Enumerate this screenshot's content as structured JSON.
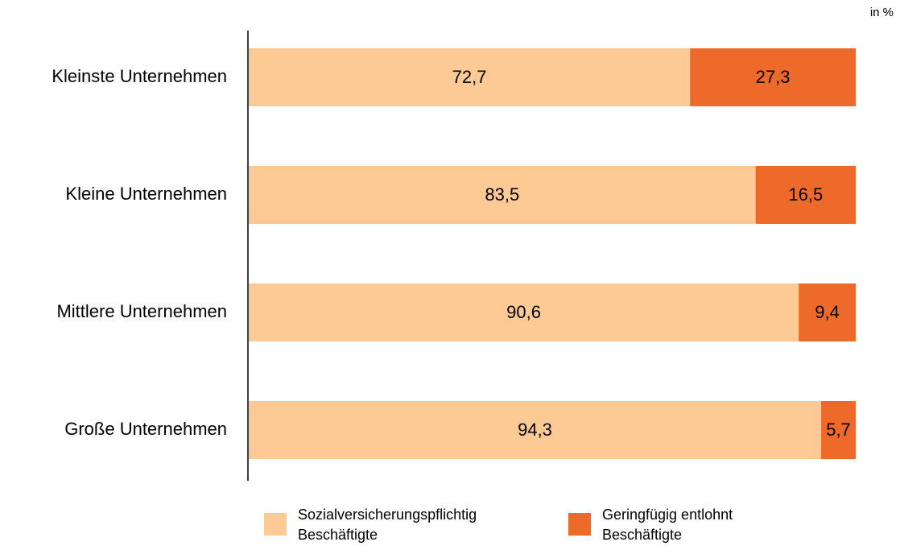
{
  "chart_data": {
    "type": "stacked-bar-horizontal",
    "unit": "in %",
    "categories": [
      "Kleinste Unternehmen",
      "Kleine Unternehmen",
      "Mittlere Unternehmen",
      "Große Unternehmen"
    ],
    "series": [
      {
        "name": "Sozialversicherungspflichtig Beschäftigte",
        "color": "#fdc994",
        "values": [
          72.7,
          83.5,
          90.6,
          94.3
        ],
        "value_labels": [
          "72,7",
          "83,5",
          "90,6",
          "94,3"
        ]
      },
      {
        "name": "Geringfügig entlohnt Beschäftigte",
        "color": "#ee6a2a",
        "values": [
          27.3,
          16.5,
          9.4,
          5.7
        ],
        "value_labels": [
          "27,3",
          "16,5",
          "9,4",
          "5,7"
        ]
      }
    ],
    "xlim": [
      0,
      100
    ]
  }
}
